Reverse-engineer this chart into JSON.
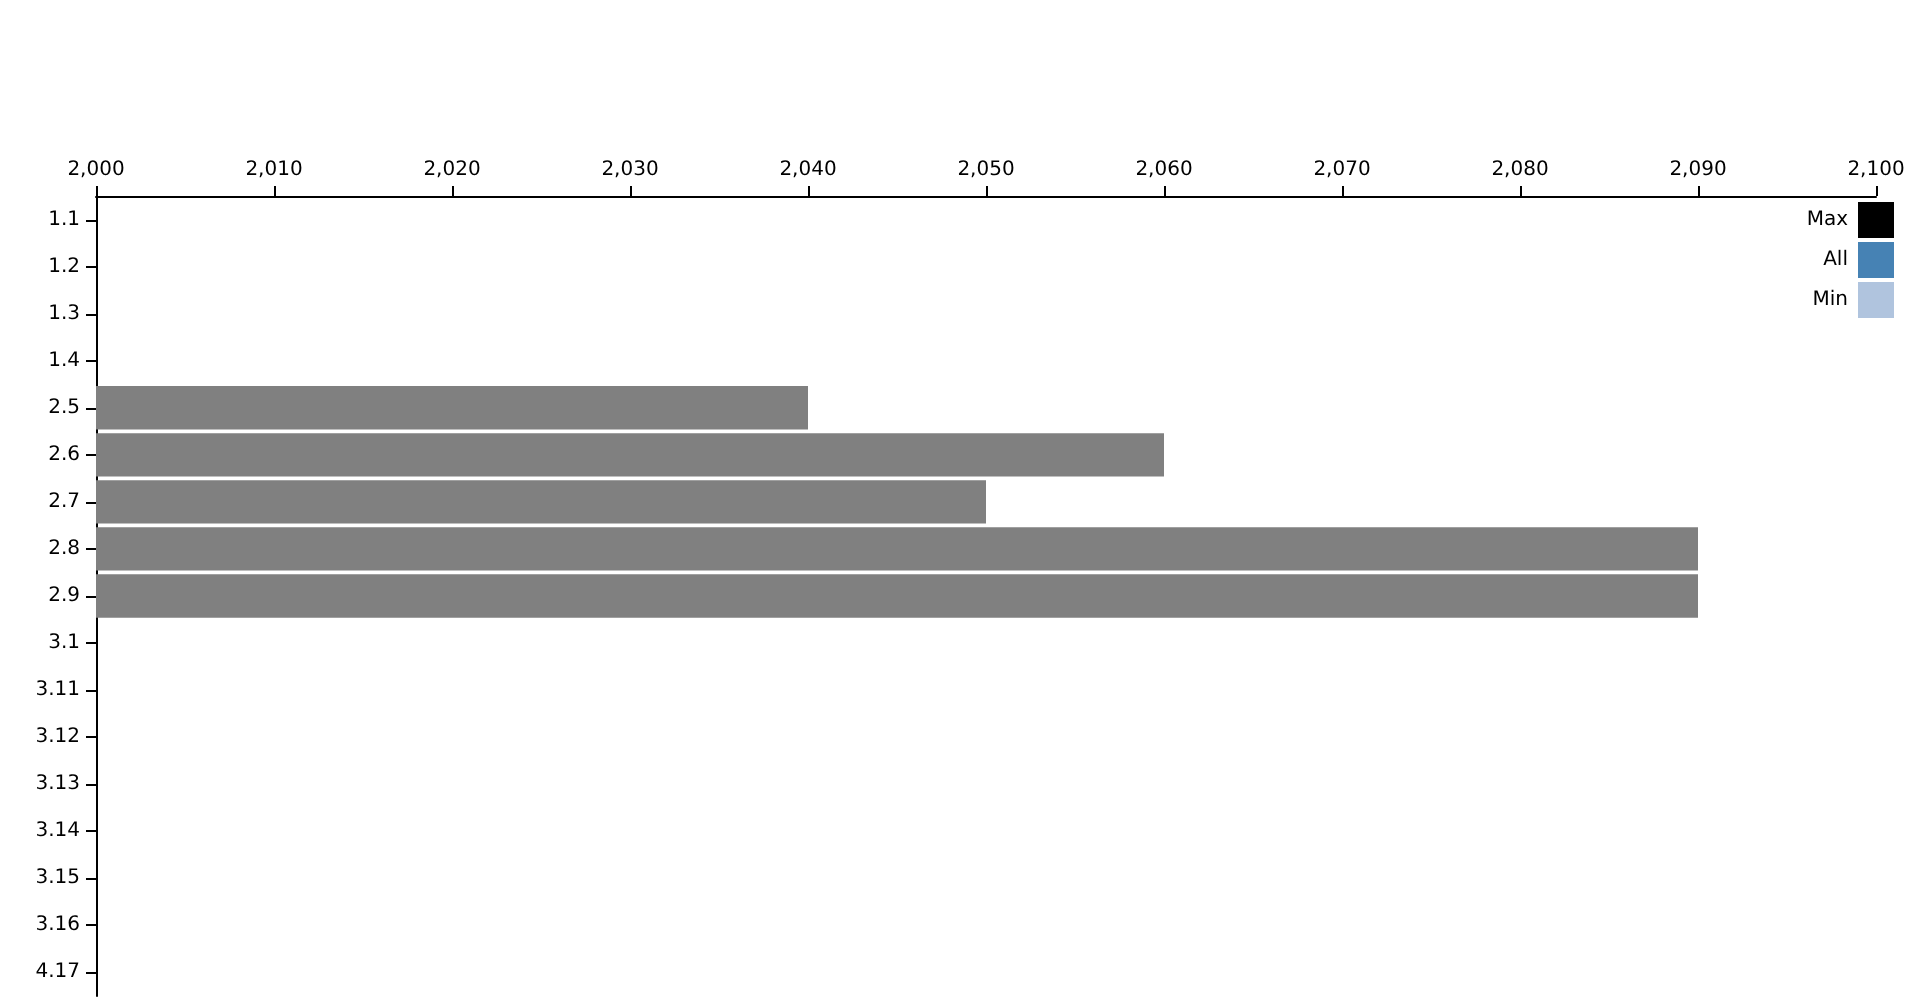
{
  "chart_data": {
    "type": "bar",
    "orientation": "horizontal",
    "categories": [
      "1.1",
      "1.2",
      "1.3",
      "1.4",
      "2.5",
      "2.6",
      "2.7",
      "2.8",
      "2.9",
      "3.1",
      "3.11",
      "3.12",
      "3.13",
      "3.14",
      "3.15",
      "3.16",
      "4.17"
    ],
    "series": [
      {
        "color": "#808080",
        "values": [
          null,
          null,
          null,
          null,
          2040,
          2060,
          2050,
          2090,
          2090,
          null,
          null,
          null,
          null,
          null,
          null,
          null,
          null
        ]
      },
      {
        "name": "Max",
        "color": "#000000",
        "values": [
          null,
          null,
          null,
          null,
          null,
          null,
          null,
          null,
          null,
          null,
          null,
          null,
          null,
          null,
          null,
          null,
          null
        ]
      },
      {
        "name": "All",
        "color": "#4682b4",
        "values": [
          null,
          null,
          null,
          null,
          null,
          null,
          null,
          null,
          null,
          null,
          null,
          null,
          null,
          null,
          null,
          null,
          null
        ]
      },
      {
        "name": "Min",
        "color": "#b0c4de",
        "values": [
          null,
          null,
          null,
          null,
          null,
          null,
          null,
          null,
          null,
          null,
          null,
          null,
          null,
          null,
          null,
          null,
          null
        ]
      }
    ],
    "xlim": [
      2000,
      2100
    ],
    "xticks": [
      {
        "value": 2000,
        "label": "2,000"
      },
      {
        "value": 2010,
        "label": "2,010"
      },
      {
        "value": 2020,
        "label": "2,020"
      },
      {
        "value": 2030,
        "label": "2,030"
      },
      {
        "value": 2040,
        "label": "2,040"
      },
      {
        "value": 2050,
        "label": "2,050"
      },
      {
        "value": 2060,
        "label": "2,060"
      },
      {
        "value": 2070,
        "label": "2,070"
      },
      {
        "value": 2080,
        "label": "2,080"
      },
      {
        "value": 2090,
        "label": "2,090"
      },
      {
        "value": 2100,
        "label": "2,100"
      }
    ],
    "grid": false,
    "legend": "top right"
  }
}
